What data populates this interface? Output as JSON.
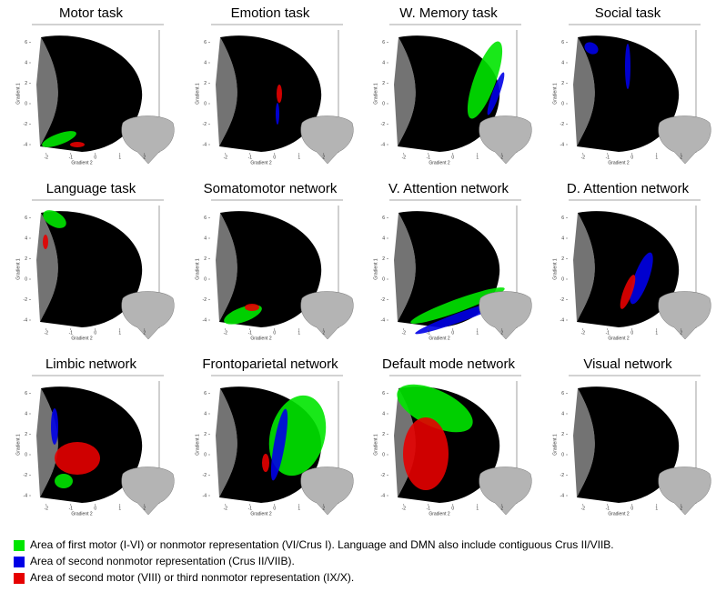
{
  "figure": {
    "panels": [
      {
        "title": "Motor task"
      },
      {
        "title": "Emotion task"
      },
      {
        "title": "W. Memory task"
      },
      {
        "title": "Social task"
      },
      {
        "title": "Language task"
      },
      {
        "title": "Somatomotor network"
      },
      {
        "title": "V. Attention network"
      },
      {
        "title": "D. Attention network"
      },
      {
        "title": "Limbic network"
      },
      {
        "title": "Frontoparietal network"
      },
      {
        "title": "Default mode network"
      },
      {
        "title": "Visual network"
      }
    ],
    "x_label": "Gradient 2",
    "y_label": "Gradient 1",
    "xlim": [
      -2.4,
      2.6
    ],
    "ylim": [
      -4.8,
      7.2
    ],
    "xticks": [
      -2,
      -1,
      0,
      1,
      2
    ],
    "yticks": [
      -4,
      -2,
      0,
      2,
      4,
      6
    ],
    "legend": [
      {
        "color": "#00e600",
        "label": "Area of first motor (I-VI) or nonmotor representation (VI/Crus I). Language and DMN also include contiguous Crus II/VIIB."
      },
      {
        "color": "#0000e6",
        "label": "Area of second nonmotor representation (Crus II/VIIB)."
      },
      {
        "color": "#e60000",
        "label": "Area of second motor (VIII) or third nonmotor representation (IX/X)."
      }
    ]
  }
}
